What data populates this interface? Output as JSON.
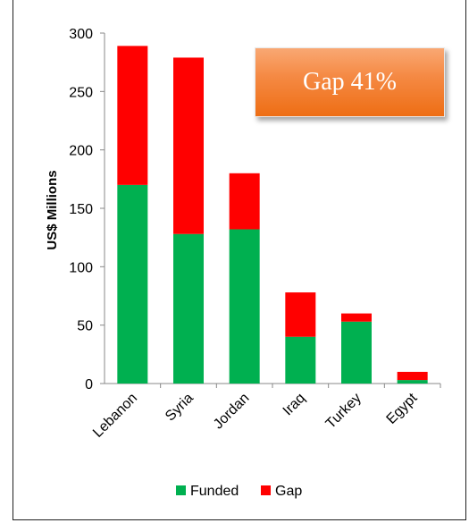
{
  "chart_data": {
    "type": "bar",
    "stacked": true,
    "categories": [
      "Lebanon",
      "Syria",
      "Jordan",
      "Iraq",
      "Turkey",
      "Egypt"
    ],
    "series": [
      {
        "name": "Funded",
        "color": "#00b050",
        "values": [
          170,
          128,
          132,
          40,
          53,
          3
        ]
      },
      {
        "name": "Gap",
        "color": "#ff0000",
        "values": [
          119,
          151,
          48,
          38,
          7,
          7
        ]
      }
    ],
    "ylabel": "US$ Millions",
    "ylim": [
      0,
      300
    ],
    "yticks": [
      0,
      50,
      100,
      150,
      200,
      250,
      300
    ],
    "grid": false,
    "legend": "bottom",
    "annotation": "Gap 41%"
  }
}
